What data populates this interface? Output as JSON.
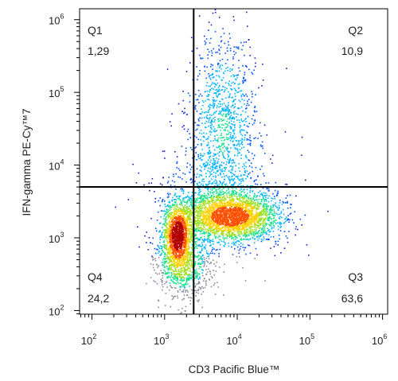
{
  "chart_data": {
    "type": "scatter",
    "plot_style": "flow-cytometry density dot plot (pseudocolor)",
    "xlabel": "CD3 Pacific Blue™",
    "ylabel": "IFN-gamma PE-Cy™7",
    "x_scale": "log",
    "y_scale": "log",
    "x_range_log10": [
      1.83,
      6.07
    ],
    "y_range_log10": [
      1.95,
      6.15
    ],
    "x_ticks": [
      {
        "base": "10",
        "exp": "2",
        "log10": 2
      },
      {
        "base": "10",
        "exp": "3",
        "log10": 3
      },
      {
        "base": "10",
        "exp": "4",
        "log10": 4
      },
      {
        "base": "10",
        "exp": "5",
        "log10": 5
      },
      {
        "base": "10",
        "exp": "6",
        "log10": 6
      }
    ],
    "y_ticks": [
      {
        "base": "10",
        "exp": "2",
        "log10": 2
      },
      {
        "base": "10",
        "exp": "3",
        "log10": 3
      },
      {
        "base": "10",
        "exp": "4",
        "log10": 4
      },
      {
        "base": "10",
        "exp": "5",
        "log10": 5
      },
      {
        "base": "10",
        "exp": "6",
        "log10": 6
      }
    ],
    "gate": {
      "x_log10": 3.4,
      "y_log10": 3.7
    },
    "quadrants": [
      {
        "name": "Q1",
        "percent": "1,29",
        "corner": "top-left"
      },
      {
        "name": "Q2",
        "percent": "10,9",
        "corner": "top-right"
      },
      {
        "name": "Q3",
        "percent": "63,6",
        "corner": "bottom-right"
      },
      {
        "name": "Q4",
        "percent": "24,2",
        "corner": "bottom-left"
      }
    ],
    "populations": [
      {
        "center_log10": [
          3.9,
          3.3
        ],
        "spread_log10": [
          0.33,
          0.17
        ],
        "weight": 0.4
      },
      {
        "center_log10": [
          3.17,
          3.05
        ],
        "spread_log10": [
          0.1,
          0.22
        ],
        "weight": 0.22
      },
      {
        "center_log10": [
          3.8,
          4.55
        ],
        "spread_log10": [
          0.23,
          0.62
        ],
        "weight": 0.18
      },
      {
        "center_log10": [
          3.25,
          2.62
        ],
        "spread_log10": [
          0.2,
          0.22
        ],
        "weight": 0.12
      },
      {
        "center_log10": [
          3.75,
          3.6
        ],
        "spread_log10": [
          0.45,
          0.4
        ],
        "weight": 0.08
      }
    ],
    "density_colors": [
      "#1a1ac8",
      "#0050ff",
      "#00b4ff",
      "#20e090",
      "#a0e020",
      "#ffd000",
      "#ff5000",
      "#b00000"
    ],
    "outlier_color": "#8a8a9a",
    "grid": false,
    "legend": "none"
  }
}
